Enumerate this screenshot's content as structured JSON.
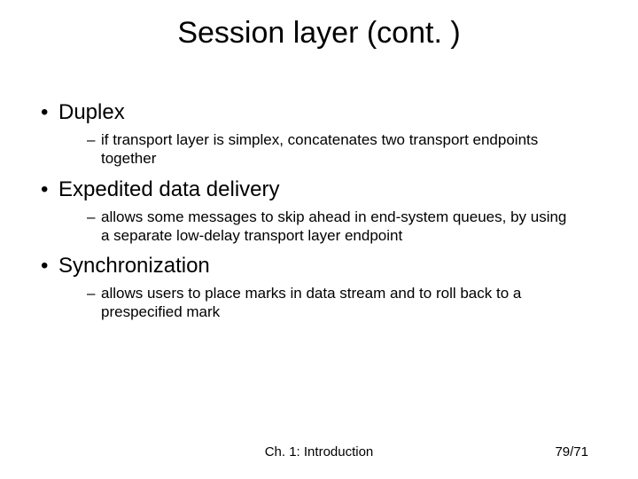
{
  "title": "Session layer (cont. )",
  "items": [
    {
      "label": "Duplex",
      "sub": [
        "if transport layer is simplex, concatenates two transport endpoints together"
      ]
    },
    {
      "label": "Expedited data delivery",
      "sub": [
        "allows some messages to skip ahead in end-system queues, by using a separate low-delay transport layer endpoint"
      ]
    },
    {
      "label": "Synchronization",
      "sub": [
        "allows users to place marks in data stream and to roll back to a prespecified mark"
      ]
    }
  ],
  "footer_center": "Ch. 1: Introduction",
  "footer_right": "79/71",
  "colors": {
    "background": "#ffffff",
    "text": "#000000"
  },
  "typography": {
    "title_fontsize": 34,
    "l1_fontsize": 24,
    "l2_fontsize": 17,
    "footer_fontsize": 15,
    "font_family": "Arial"
  }
}
